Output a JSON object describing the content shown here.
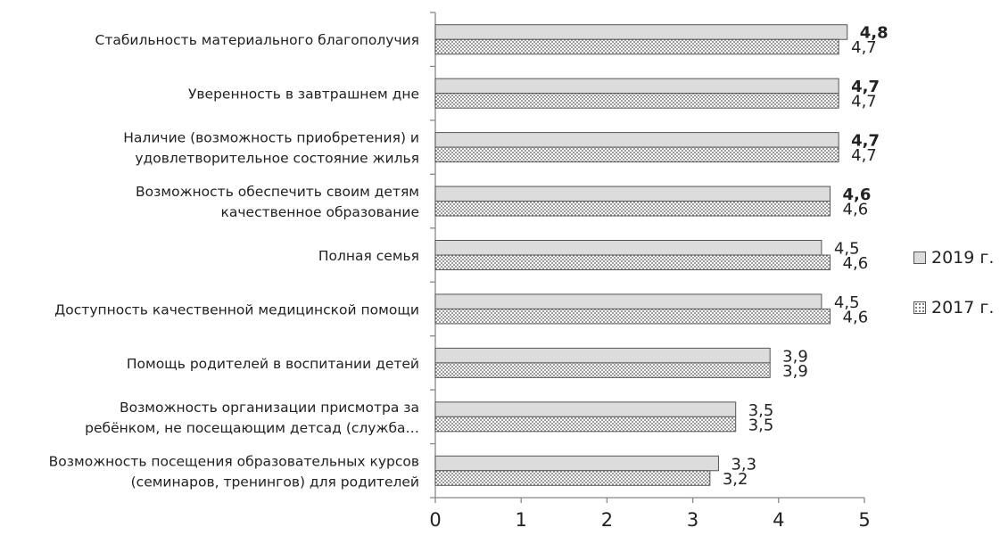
{
  "chart_data": {
    "type": "bar",
    "orientation": "horizontal",
    "categories": [
      [
        "Стабильность материального благополучия"
      ],
      [
        "Уверенность в завтрашнем дне"
      ],
      [
        "Наличие (возможность приобретения) и",
        "удовлетворительное состояние жилья"
      ],
      [
        "Возможность обеспечить своим детям",
        "качественное образование"
      ],
      [
        "Полная семья"
      ],
      [
        "Доступность качественной медицинской помощи"
      ],
      [
        "Помощь родителей в воспитании детей"
      ],
      [
        "Возможность организации присмотра за",
        "ребёнком, не посещающим детсад (служба…"
      ],
      [
        "Возможность посещения образовательных курсов",
        "(семинаров, тренингов) для родителей"
      ]
    ],
    "series": [
      {
        "name": "2019 г.",
        "values": [
          4.8,
          4.7,
          4.7,
          4.6,
          4.5,
          4.5,
          3.9,
          3.5,
          3.3
        ],
        "labels": [
          "4,8",
          "4,7",
          "4,7",
          "4,6",
          "4,5",
          "4,5",
          "3,9",
          "3,5",
          "3,3"
        ],
        "bold": [
          true,
          true,
          true,
          true,
          false,
          false,
          false,
          false,
          false
        ],
        "fill": "#dcdcdc",
        "pattern": "solid"
      },
      {
        "name": "2017 г.",
        "values": [
          4.7,
          4.7,
          4.7,
          4.6,
          4.6,
          4.6,
          3.9,
          3.5,
          3.2
        ],
        "labels": [
          "4,7",
          "4,7",
          "4,7",
          "4,6",
          "4,6",
          "4,6",
          "3,9",
          "3,5",
          "3,2"
        ],
        "bold": [
          false,
          false,
          false,
          false,
          false,
          false,
          false,
          false,
          false
        ],
        "fill": "#ffffff",
        "pattern": "dotted"
      }
    ],
    "xlim": [
      0,
      5
    ],
    "xticks": [
      "0",
      "1",
      "2",
      "3",
      "4",
      "5"
    ],
    "grid": false,
    "legend_position": "right"
  }
}
